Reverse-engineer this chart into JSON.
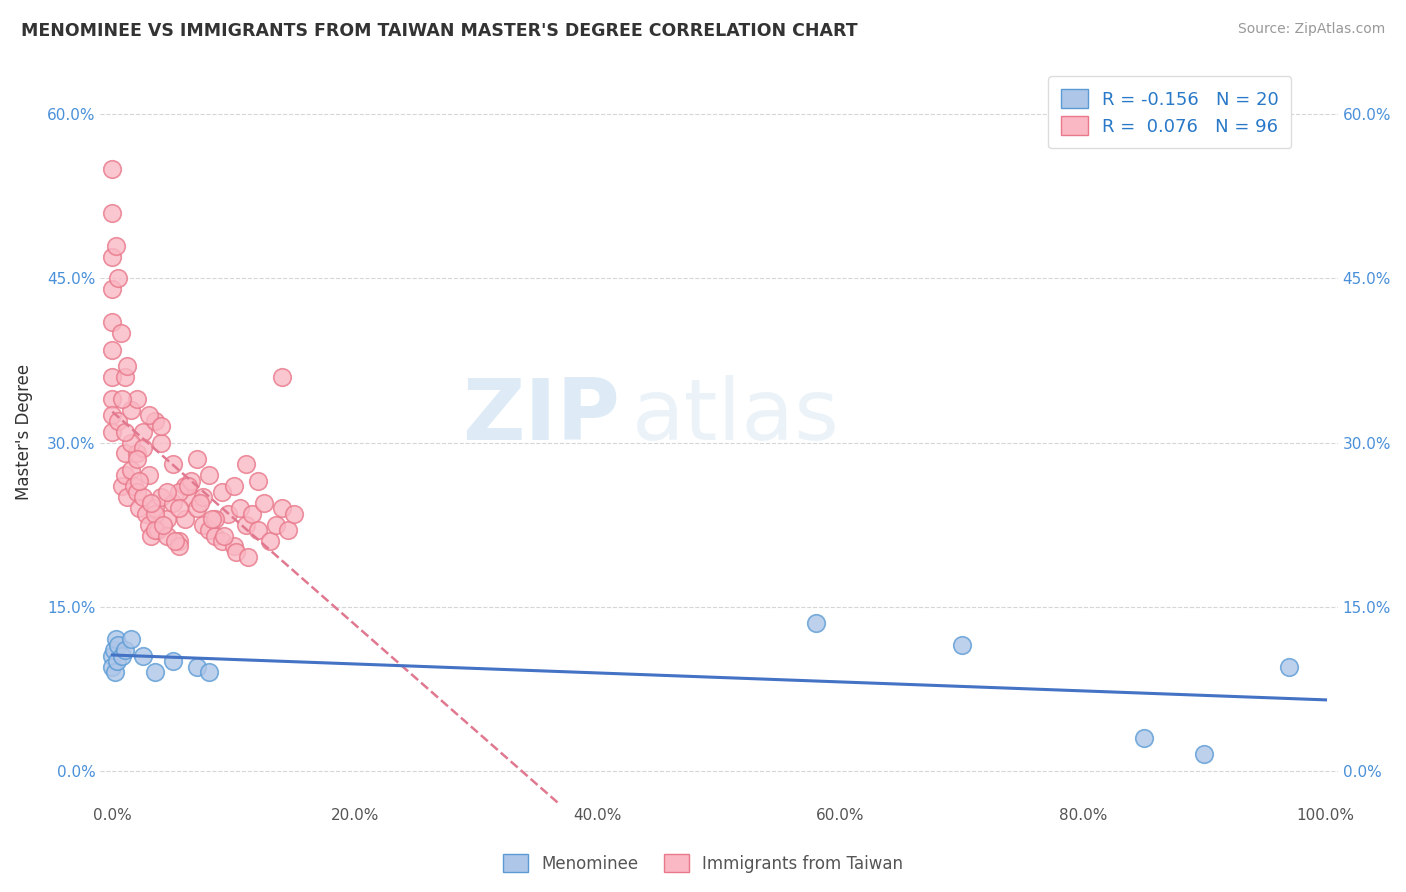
{
  "title": "MENOMINEE VS IMMIGRANTS FROM TAIWAN MASTER'S DEGREE CORRELATION CHART",
  "source": "Source: ZipAtlas.com",
  "ylabel": "Master's Degree",
  "xlim": [
    -1,
    101
  ],
  "ylim": [
    -3,
    65
  ],
  "xticks": [
    0,
    20,
    40,
    60,
    80,
    100
  ],
  "xticklabels": [
    "0.0%",
    "20.0%",
    "40.0%",
    "60.0%",
    "80.0%",
    "100.0%"
  ],
  "yticks": [
    0,
    15,
    30,
    45,
    60
  ],
  "yticklabels": [
    "0.0%",
    "15.0%",
    "30.0%",
    "45.0%",
    "60.0%"
  ],
  "background_color": "#ffffff",
  "grid_color": "#cccccc",
  "menominee_color": "#aec6e8",
  "menominee_edge_color": "#5b9bd5",
  "taiwan_color": "#f9b8c4",
  "taiwan_edge_color": "#e8788a",
  "menominee_R": -0.156,
  "menominee_N": 20,
  "taiwan_R": 0.076,
  "taiwan_N": 96,
  "legend_R_color": "#2979c8",
  "menominee_line_color": "#4472c4",
  "taiwan_line_color": "#e07890",
  "watermark_zip": "ZIP",
  "watermark_atlas": "atlas",
  "menominee_x": [
    0.0,
    0.0,
    0.1,
    0.2,
    0.3,
    0.4,
    0.5,
    0.8,
    1.0,
    1.5,
    2.5,
    3.5,
    5.0,
    7.0,
    8.0,
    58.0,
    70.0,
    85.0,
    90.0,
    97.0
  ],
  "menominee_y": [
    10.5,
    9.5,
    11.0,
    9.0,
    12.0,
    10.0,
    11.5,
    10.5,
    11.0,
    12.0,
    10.5,
    9.0,
    10.0,
    9.5,
    9.0,
    13.5,
    11.5,
    3.0,
    1.5,
    9.5
  ],
  "taiwan_x": [
    0.0,
    0.0,
    0.0,
    0.0,
    0.0,
    0.0,
    0.0,
    0.0,
    0.0,
    0.0,
    0.3,
    0.5,
    0.7,
    0.8,
    1.0,
    1.0,
    1.2,
    1.5,
    1.8,
    2.0,
    2.2,
    2.5,
    2.8,
    3.0,
    3.2,
    3.5,
    3.8,
    4.0,
    4.5,
    5.0,
    5.5,
    6.0,
    6.5,
    7.0,
    7.5,
    8.0,
    8.5,
    9.0,
    9.5,
    10.0,
    10.5,
    11.0,
    11.5,
    12.0,
    12.5,
    13.0,
    13.5,
    14.0,
    14.5,
    15.0,
    2.0,
    3.0,
    4.0,
    5.0,
    6.0,
    7.0,
    8.0,
    9.0,
    10.0,
    11.0,
    12.0,
    1.5,
    2.5,
    3.5,
    1.0,
    2.0,
    3.0,
    4.0,
    5.5,
    6.5,
    7.5,
    8.5,
    3.5,
    4.5,
    5.5,
    14.0,
    0.5,
    1.5,
    2.5,
    3.5,
    4.5,
    5.5,
    1.0,
    2.0,
    0.8,
    1.2,
    2.2,
    3.2,
    4.2,
    5.2,
    6.2,
    7.2,
    8.2,
    9.2,
    10.2,
    11.2
  ],
  "taiwan_y": [
    55.0,
    51.0,
    47.0,
    44.0,
    41.0,
    38.5,
    36.0,
    34.0,
    32.5,
    31.0,
    48.0,
    32.0,
    40.0,
    26.0,
    29.0,
    27.0,
    25.0,
    27.5,
    26.0,
    25.5,
    24.0,
    25.0,
    23.5,
    22.5,
    21.5,
    24.0,
    22.0,
    25.0,
    23.0,
    24.5,
    21.0,
    23.0,
    25.0,
    24.0,
    22.5,
    22.0,
    21.5,
    21.0,
    23.5,
    20.5,
    24.0,
    22.5,
    23.5,
    22.0,
    24.5,
    21.0,
    22.5,
    24.0,
    22.0,
    23.5,
    29.0,
    27.0,
    30.0,
    28.0,
    26.0,
    28.5,
    27.0,
    25.5,
    26.0,
    28.0,
    26.5,
    33.0,
    31.0,
    32.0,
    36.0,
    34.0,
    32.5,
    31.5,
    25.5,
    26.5,
    25.0,
    23.0,
    23.5,
    25.5,
    24.0,
    36.0,
    45.0,
    30.0,
    29.5,
    22.0,
    21.5,
    20.5,
    31.0,
    28.5,
    34.0,
    37.0,
    26.5,
    24.5,
    22.5,
    21.0,
    26.0,
    24.5,
    23.0,
    21.5,
    20.0,
    19.5
  ]
}
